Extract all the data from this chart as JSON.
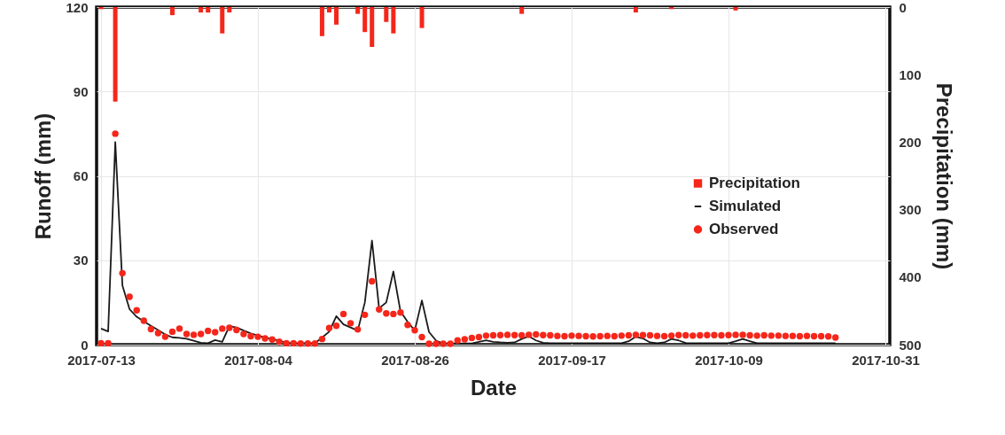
{
  "chart_data": {
    "type": "line",
    "xlabel": "Date",
    "ylabel": "Runoff (mm)",
    "y2label": "Precipitation (mm)",
    "x": [
      "2017-07-13",
      "2017-07-14",
      "2017-07-15",
      "2017-07-16",
      "2017-07-17",
      "2017-07-18",
      "2017-07-19",
      "2017-07-20",
      "2017-07-21",
      "2017-07-22",
      "2017-07-23",
      "2017-07-24",
      "2017-07-25",
      "2017-07-26",
      "2017-07-27",
      "2017-07-28",
      "2017-07-29",
      "2017-07-30",
      "2017-07-31",
      "2017-08-01",
      "2017-08-02",
      "2017-08-03",
      "2017-08-04",
      "2017-08-05",
      "2017-08-06",
      "2017-08-07",
      "2017-08-08",
      "2017-08-09",
      "2017-08-10",
      "2017-08-11",
      "2017-08-12",
      "2017-08-13",
      "2017-08-14",
      "2017-08-15",
      "2017-08-16",
      "2017-08-17",
      "2017-08-18",
      "2017-08-19",
      "2017-08-20",
      "2017-08-21",
      "2017-08-22",
      "2017-08-23",
      "2017-08-24",
      "2017-08-25",
      "2017-08-26",
      "2017-08-27",
      "2017-08-28",
      "2017-08-29",
      "2017-08-30",
      "2017-08-31",
      "2017-09-01",
      "2017-09-02",
      "2017-09-03",
      "2017-09-04",
      "2017-09-05",
      "2017-09-06",
      "2017-09-07",
      "2017-09-08",
      "2017-09-09",
      "2017-09-10",
      "2017-09-11",
      "2017-09-12",
      "2017-09-13",
      "2017-09-14",
      "2017-09-15",
      "2017-09-16",
      "2017-09-17",
      "2017-09-18",
      "2017-09-19",
      "2017-09-20",
      "2017-09-21",
      "2017-09-22",
      "2017-09-23",
      "2017-09-24",
      "2017-09-25",
      "2017-09-26",
      "2017-09-27",
      "2017-09-28",
      "2017-09-29",
      "2017-09-30",
      "2017-10-01",
      "2017-10-02",
      "2017-10-03",
      "2017-10-04",
      "2017-10-05",
      "2017-10-06",
      "2017-10-07",
      "2017-10-08",
      "2017-10-09",
      "2017-10-10",
      "2017-10-11",
      "2017-10-12",
      "2017-10-13",
      "2017-10-14",
      "2017-10-15",
      "2017-10-16",
      "2017-10-17",
      "2017-10-18",
      "2017-10-19",
      "2017-10-20",
      "2017-10-21",
      "2017-10-22",
      "2017-10-23",
      "2017-10-24"
    ],
    "series": [
      {
        "name": "Precipitation",
        "type": "bar",
        "axis": "y2",
        "color": "#f5261a",
        "values": [
          3,
          null,
          140,
          null,
          null,
          null,
          null,
          null,
          null,
          null,
          12,
          null,
          null,
          null,
          8,
          8,
          null,
          39,
          8,
          null,
          null,
          null,
          null,
          null,
          null,
          null,
          null,
          null,
          null,
          null,
          null,
          43,
          8,
          26,
          null,
          null,
          10,
          37,
          59,
          null,
          22,
          39,
          null,
          null,
          null,
          31,
          null,
          null,
          null,
          null,
          null,
          null,
          null,
          null,
          null,
          null,
          null,
          null,
          null,
          10,
          null,
          null,
          null,
          null,
          null,
          null,
          null,
          null,
          null,
          null,
          null,
          null,
          null,
          null,
          null,
          8,
          null,
          null,
          null,
          null,
          3,
          null,
          null,
          null,
          null,
          null,
          null,
          null,
          null,
          5,
          null,
          null,
          null,
          null,
          null,
          null,
          null,
          null,
          null,
          null,
          null,
          null,
          null,
          null
        ]
      },
      {
        "name": "Simulated",
        "color": "#1a1a1a",
        "values": [
          5.7,
          4.7,
          72,
          21,
          12.6,
          9.9,
          8.3,
          6.7,
          5.2,
          3.6,
          2.6,
          2.4,
          2.1,
          1.4,
          0.7,
          0.5,
          1.6,
          1,
          6.6,
          6.1,
          5,
          4,
          3.3,
          2.5,
          2,
          1.4,
          0.7,
          0.5,
          0.5,
          0.5,
          0.5,
          2.5,
          4.6,
          10.1,
          7.2,
          6.1,
          5,
          15,
          37,
          12.9,
          15,
          26,
          11.8,
          8.1,
          5,
          15.7,
          4.5,
          1.4,
          0.4,
          0.4,
          0.4,
          0.4,
          0.4,
          1,
          1.5,
          1,
          0.8,
          0.7,
          0.8,
          2,
          3,
          1.5,
          0.7,
          0.5,
          0.5,
          0.5,
          0.5,
          0.5,
          0.5,
          0.5,
          0.5,
          0.5,
          0.5,
          0.5,
          1.2,
          2.8,
          2.2,
          0.8,
          0.5,
          0.8,
          2,
          1.5,
          0.6,
          0.5,
          0.5,
          0.5,
          0.5,
          0.5,
          0.5,
          1.2,
          2,
          1.2,
          0.5,
          0.5,
          0.5,
          0.5,
          0.5,
          0.5,
          0.5,
          0.5,
          0.5,
          0.5,
          0.5,
          0.5
        ]
      },
      {
        "name": "Observed",
        "type": "scatter",
        "marker": "circle",
        "color": "#f5261a",
        "values": [
          0.5,
          0.5,
          75,
          25.4,
          17,
          12.2,
          8.5,
          5.5,
          4.1,
          2.8,
          4.6,
          5.7,
          3.8,
          3.5,
          3.8,
          4.9,
          4.4,
          5.7,
          6,
          5.2,
          3.8,
          3,
          2.8,
          2.2,
          1.8,
          1,
          0.5,
          0.5,
          0.4,
          0.4,
          0.4,
          2,
          5.9,
          6.7,
          10.9,
          7.6,
          5.4,
          10.6,
          22.5,
          12.5,
          11.1,
          10.9,
          11.4,
          7,
          5.1,
          2.7,
          0.3,
          0.3,
          0.3,
          0.3,
          1.5,
          1.9,
          2.4,
          2.7,
          3.2,
          3.3,
          3.4,
          3.5,
          3.4,
          3.3,
          3.5,
          3.6,
          3.4,
          3.3,
          3.1,
          3,
          3.2,
          3.1,
          3,
          2.9,
          3,
          3.1,
          3,
          3.2,
          3.3,
          3.5,
          3.4,
          3.3,
          3.1,
          3,
          3.2,
          3.4,
          3.3,
          3.2,
          3.3,
          3.4,
          3.4,
          3.3,
          3.4,
          3.5,
          3.5,
          3.3,
          3.2,
          3.3,
          3.2,
          3.2,
          3.1,
          3.1,
          3,
          3.1,
          3,
          3,
          2.9,
          2.5
        ]
      }
    ],
    "xlim": [
      "2017-07-13",
      "2017-10-31"
    ],
    "xticks": [
      "2017-07-13",
      "2017-08-04",
      "2017-08-26",
      "2017-09-17",
      "2017-10-09",
      "2017-10-31"
    ],
    "ylim": [
      0,
      120
    ],
    "yticks": [
      0,
      30,
      60,
      90,
      120
    ],
    "y2lim": [
      500,
      0
    ],
    "y2ticks": [
      0,
      100,
      200,
      300,
      400,
      500
    ],
    "grid": true,
    "legend": "right",
    "line_style": "solid"
  }
}
